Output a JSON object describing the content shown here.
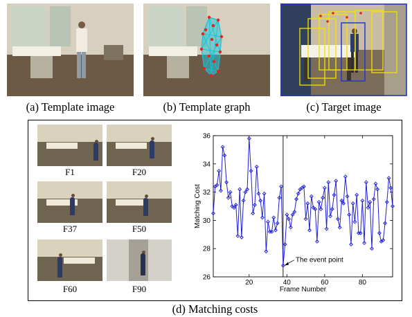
{
  "panels": {
    "a_caption": "(a) Template image",
    "b_caption": "(b) Template graph",
    "c_caption": "(c) Target image",
    "d_caption": "(d) Matching costs"
  },
  "frames": [
    {
      "label": "F1"
    },
    {
      "label": "F20"
    },
    {
      "label": "F37"
    },
    {
      "label": "F50"
    },
    {
      "label": "F60"
    },
    {
      "label": "F90"
    }
  ],
  "chart_data": {
    "type": "line",
    "xlabel": "Frame Number",
    "ylabel": "Matching Cost",
    "xlim": [
      1,
      96
    ],
    "ylim": [
      26,
      36
    ],
    "xticks": [
      20,
      40,
      60,
      80
    ],
    "yticks": [
      26,
      28,
      30,
      32,
      34,
      36
    ],
    "grid": false,
    "color": "#1f1fd6",
    "marker": "diamond",
    "annotation": {
      "text": "The event point",
      "x": 38,
      "y": 26.8
    },
    "vline_x": 38,
    "series": [
      {
        "x": [
          1,
          2,
          3,
          4,
          5,
          6,
          7,
          8,
          9,
          10,
          11,
          12,
          13,
          14,
          15,
          16,
          17,
          18,
          19,
          20,
          21,
          22,
          23,
          24,
          25,
          26,
          27,
          28,
          29,
          30,
          31,
          32,
          33,
          34,
          35,
          36,
          37,
          38,
          39,
          40,
          41,
          42,
          43,
          44,
          45,
          46,
          47,
          48,
          49,
          50,
          51,
          52,
          53,
          54,
          55,
          56,
          57,
          58,
          59,
          60,
          61,
          62,
          63,
          64,
          65,
          66,
          67,
          68,
          69,
          70,
          71,
          72,
          73,
          74,
          75,
          76,
          77,
          78,
          79,
          80,
          81,
          82,
          83,
          84,
          85,
          86,
          87,
          88,
          89,
          90,
          91,
          92,
          93,
          94,
          95,
          96
        ],
        "values": [
          30.5,
          32.4,
          32.5,
          33.5,
          32.1,
          35.2,
          34.6,
          32.7,
          31.6,
          32.0,
          31.0,
          30.9,
          31.1,
          28.9,
          32.2,
          28.8,
          31.4,
          32.0,
          32.2,
          35.8,
          33.5,
          30.5,
          31.1,
          33.8,
          31.9,
          31.4,
          30.2,
          31.9,
          27.8,
          29.9,
          29.2,
          29.2,
          30.2,
          29.3,
          29.8,
          31.6,
          32.4,
          26.8,
          28.3,
          30.4,
          30.1,
          29.5,
          30.4,
          30.6,
          31.5,
          31.9,
          32.2,
          32.3,
          32.4,
          30.1,
          31.2,
          29.3,
          31.7,
          30.9,
          30.8,
          28.5,
          31.3,
          30.8,
          31.6,
          32.3,
          29.4,
          32.7,
          30.3,
          30.8,
          31.8,
          32.8,
          30.1,
          29.5,
          31.4,
          31.2,
          33.1,
          31.7,
          30.4,
          28.3,
          31.2,
          29.9,
          31.8,
          29.1,
          29.1,
          31.4,
          28.4,
          32.7,
          30.9,
          31.3,
          28.0,
          31.5,
          32.6,
          32.2,
          29.1,
          28.5,
          28.6,
          29.8,
          31.3,
          33.0,
          32.3,
          31.0
        ]
      }
    ]
  }
}
